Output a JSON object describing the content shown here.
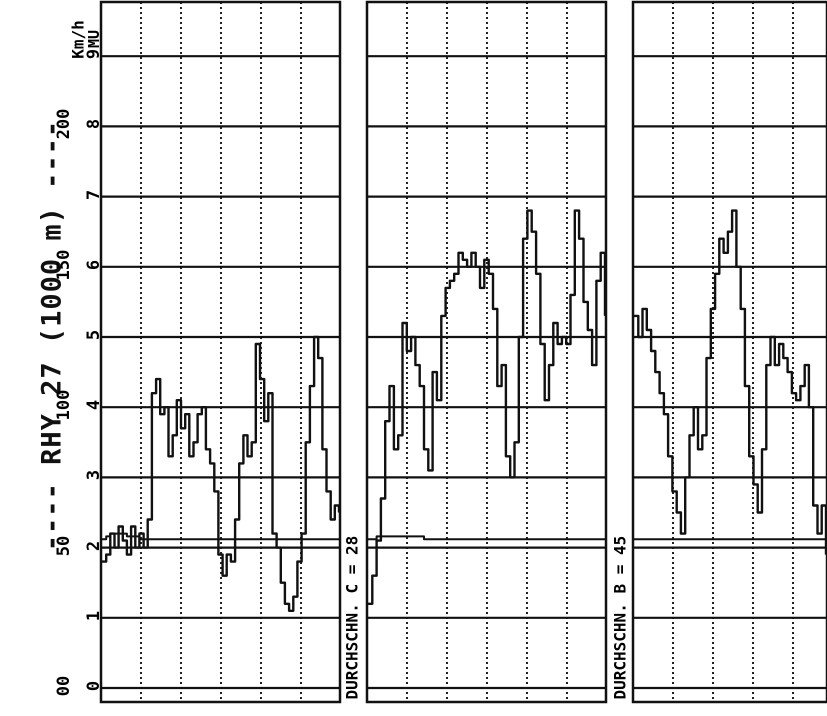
{
  "title": "---- RHY 27 (1000 m) ----",
  "y_axis": {
    "speed_unit": "Km/h",
    "mu_unit": "MU",
    "speed_ticks": [
      "00",
      "50",
      "100",
      "150",
      "200"
    ],
    "mu_ticks": [
      "0",
      "1",
      "2",
      "3",
      "4",
      "5",
      "6",
      "7",
      "8",
      "9"
    ]
  },
  "panels": [
    {
      "label": ""
    },
    {
      "label": "DURCHSCHN. C = 28"
    },
    {
      "label": "DURCHSCHN. B = 45"
    }
  ],
  "chart_data": {
    "type": "line",
    "title": "RHY 27 (1000 m)",
    "ylabel": "Km/h / MU",
    "ylim_mu": [
      0,
      9
    ],
    "ylim_speed": [
      0,
      200
    ],
    "grid": true,
    "series": [
      {
        "panel": 1,
        "role": "friction",
        "values": [
          1.8,
          1.9,
          2.2,
          2.0,
          2.3,
          2.1,
          1.9,
          2.3,
          2.0,
          2.2,
          2.0,
          2.4,
          4.2,
          4.4,
          3.9,
          4.0,
          3.3,
          3.6,
          4.1,
          3.7,
          3.9,
          3.3,
          3.5,
          3.9,
          4.0,
          3.4,
          3.2,
          2.8,
          1.9,
          1.6,
          1.9,
          1.8,
          2.4,
          3.2,
          3.6,
          3.3,
          3.5,
          4.9,
          4.4,
          3.8,
          4.2,
          2.2,
          2.0,
          1.5,
          1.2,
          1.1,
          1.3,
          1.8,
          2.2,
          3.5,
          4.3,
          5.0,
          4.7,
          3.4,
          2.8,
          2.4,
          2.6,
          2.5
        ]
      },
      {
        "panel": 1,
        "role": "speed",
        "values": [
          53,
          54,
          55,
          55,
          55,
          55,
          54,
          54,
          54,
          53,
          53,
          53,
          53,
          53,
          53,
          53,
          53,
          53,
          53,
          53,
          53,
          53,
          53,
          53,
          53,
          53,
          53,
          53,
          53,
          53,
          53,
          53,
          53,
          53,
          53,
          53,
          53,
          53,
          53,
          53,
          53,
          53,
          53,
          53,
          53,
          53,
          53,
          53,
          53,
          53,
          53,
          53,
          53,
          53,
          53,
          53,
          53,
          53
        ]
      },
      {
        "panel": 2,
        "role": "friction",
        "values": [
          1.2,
          1.6,
          2.1,
          2.7,
          3.8,
          4.3,
          3.4,
          3.6,
          5.2,
          4.8,
          5.0,
          4.6,
          4.3,
          3.4,
          3.1,
          4.5,
          4.1,
          5.3,
          5.7,
          5.8,
          5.9,
          6.2,
          6.1,
          6.0,
          6.2,
          6.0,
          5.7,
          6.1,
          5.9,
          5.4,
          4.3,
          4.6,
          3.3,
          3.0,
          3.5,
          5.0,
          6.4,
          6.8,
          6.5,
          5.9,
          4.9,
          4.1,
          4.6,
          5.2,
          4.9,
          5.0,
          4.9,
          5.6,
          6.8,
          6.4,
          5.5,
          5.1,
          4.6,
          5.8,
          6.2,
          5.3
        ]
      },
      {
        "panel": 2,
        "role": "speed",
        "values": [
          53,
          53,
          54,
          54,
          54,
          54,
          54,
          54,
          54,
          54,
          54,
          54,
          54,
          53,
          53,
          53,
          53,
          53,
          53,
          53,
          53,
          53,
          53,
          53,
          53,
          53,
          53,
          53,
          53,
          53,
          53,
          53,
          53,
          53,
          53,
          53,
          53,
          53,
          53,
          53,
          53,
          53,
          53,
          53,
          53,
          53,
          53,
          53,
          53,
          53,
          53,
          53,
          53,
          53,
          53,
          53
        ]
      },
      {
        "panel": 3,
        "role": "friction",
        "values": [
          5.3,
          5.0,
          5.4,
          5.1,
          4.8,
          4.5,
          4.2,
          3.9,
          3.3,
          2.8,
          2.5,
          2.2,
          3.0,
          3.6,
          4.0,
          3.4,
          3.6,
          4.7,
          5.4,
          5.9,
          6.4,
          6.2,
          6.5,
          6.8,
          6.0,
          5.4,
          4.3,
          3.3,
          2.9,
          2.5,
          3.4,
          4.6,
          5.0,
          4.6,
          4.9,
          4.7,
          4.5,
          4.2,
          4.1,
          4.3,
          4.6,
          4.0,
          2.6,
          2.2,
          2.6,
          1.9
        ]
      },
      {
        "panel": 3,
        "role": "speed",
        "values": [
          53,
          53,
          53,
          53,
          53,
          53,
          53,
          53,
          53,
          53,
          53,
          53,
          53,
          53,
          53,
          53,
          53,
          53,
          53,
          53,
          53,
          53,
          53,
          53,
          53,
          53,
          53,
          53,
          53,
          53,
          53,
          53,
          53,
          53,
          53,
          53,
          53,
          53,
          53,
          53,
          53,
          53,
          53,
          53,
          53,
          53
        ]
      }
    ]
  }
}
